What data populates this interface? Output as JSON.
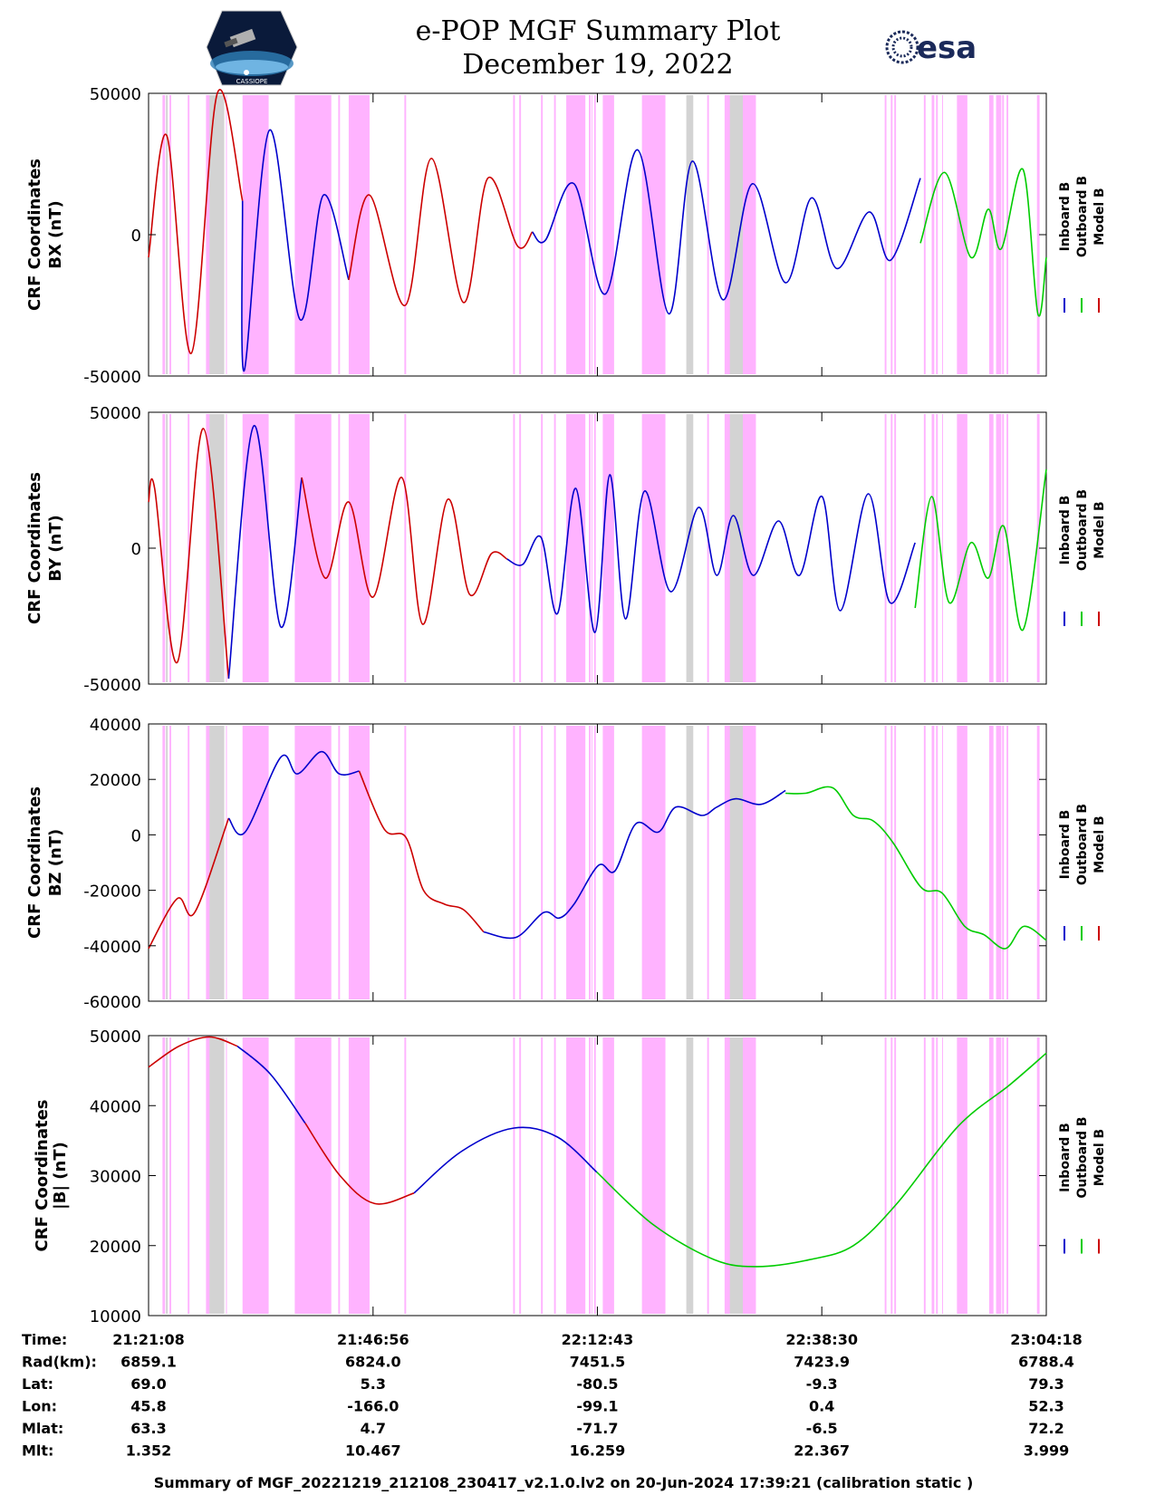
{
  "header": {
    "title": "e-POP MGF Summary Plot",
    "date": "December 19, 2022",
    "mission_logo_caption": "CASSIOPE",
    "agency_logo_text": "esa"
  },
  "footer": {
    "summary": "Summary of MGF_20221219_212108_230417_v2.1.0.lv2 on 20-Jun-2024 17:39:21 (calibration static )"
  },
  "colors": {
    "inboard": "#0000cc",
    "outboard": "#00cc00",
    "model": "#cc0000",
    "pink_shade": "#ffb3ff",
    "gray_shade": "#d3d3d3"
  },
  "chart_data": {
    "type": "line",
    "x_range_minutes": [
      0,
      103.17
    ],
    "x_ticks_minutes": [
      0,
      25.8,
      51.58,
      77.37,
      103.17
    ],
    "legend_entries": [
      "Inboard B",
      "Outboard B",
      "Model B"
    ],
    "orbit_table": {
      "rows": [
        {
          "label": "Time:",
          "values": [
            "21:21:08",
            "21:46:56",
            "22:12:43",
            "22:38:30",
            "23:04:18"
          ]
        },
        {
          "label": "Rad(km):",
          "values": [
            "6859.1",
            "6824.0",
            "7451.5",
            "7423.9",
            "6788.4"
          ]
        },
        {
          "label": "Lat:",
          "values": [
            "69.0",
            "5.3",
            "-80.5",
            "-9.3",
            "79.3"
          ]
        },
        {
          "label": "Lon:",
          "values": [
            "45.8",
            "-166.0",
            "-99.1",
            "0.4",
            "52.3"
          ]
        },
        {
          "label": "Mlat:",
          "values": [
            "63.3",
            "4.7",
            "-71.7",
            "-6.5",
            "72.2"
          ]
        },
        {
          "label": "Mlt:",
          "values": [
            "1.352",
            "10.467",
            "16.259",
            "22.367",
            "3.999"
          ]
        }
      ]
    },
    "shading": {
      "pink": [
        [
          1.6,
          1.9
        ],
        [
          2.4,
          2.6
        ],
        [
          4.5,
          4.7
        ],
        [
          6.6,
          8.5
        ],
        [
          8.9,
          9.0
        ],
        [
          10.8,
          13.8
        ],
        [
          16.8,
          21.0
        ],
        [
          21.8,
          22.0
        ],
        [
          23.0,
          25.4
        ],
        [
          29.4,
          29.6
        ],
        [
          41.9,
          42.1
        ],
        [
          42.6,
          42.8
        ],
        [
          45.1,
          45.3
        ],
        [
          46.6,
          46.8
        ],
        [
          48.0,
          50.2
        ],
        [
          50.6,
          50.8
        ],
        [
          50.9,
          51.0
        ],
        [
          51.2,
          51.4
        ],
        [
          52.2,
          53.5
        ],
        [
          56.7,
          59.4
        ],
        [
          64.2,
          64.4
        ],
        [
          66.2,
          69.8
        ],
        [
          84.6,
          84.8
        ],
        [
          85.3,
          85.5
        ],
        [
          85.7,
          85.9
        ],
        [
          89.1,
          89.3
        ],
        [
          90.0,
          90.3
        ],
        [
          90.5,
          90.7
        ],
        [
          91.2,
          91.3
        ],
        [
          92.9,
          94.1
        ],
        [
          96.6,
          97.1
        ],
        [
          97.4,
          98.0
        ],
        [
          98.1,
          98.3
        ],
        [
          98.6,
          98.8
        ],
        [
          102.1,
          102.4
        ]
      ],
      "gray": [
        [
          2.0,
          2.2
        ],
        [
          7.0,
          8.7
        ],
        [
          61.8,
          62.6
        ],
        [
          66.8,
          68.3
        ]
      ]
    },
    "panels": [
      {
        "ylabel": [
          "CRF Coordinates",
          "BX (nT)"
        ],
        "ylim": [
          -50000,
          50000
        ],
        "yticks": [
          -50000,
          0,
          50000
        ],
        "segments": [
          {
            "color": "model",
            "x": [
              0,
              2.1,
              4.9,
              7.9,
              10.8
            ],
            "y": [
              -8000,
              35000,
              -42000,
              50000,
              12000
            ]
          },
          {
            "color": "inboard",
            "x": [
              10.8,
              11.0,
              13.9,
              17.4,
              20.1,
              23.0
            ],
            "y": [
              12000,
              -48000,
              37000,
              -30000,
              14000,
              -16000
            ]
          },
          {
            "color": "model",
            "x": [
              23.0,
              25.4,
              29.5,
              32.5,
              36.2,
              39.0,
              42.4,
              44.1
            ],
            "y": [
              -16000,
              14000,
              -25000,
              27000,
              -24000,
              20000,
              -4000,
              1000
            ]
          },
          {
            "color": "inboard",
            "x": [
              44.1,
              45.6,
              48.9,
              52.5,
              56.2,
              59.8,
              62.5,
              66.0,
              69.4,
              73.2,
              76.2,
              79.1,
              82.8,
              85.3,
              88.7
            ],
            "y": [
              1000,
              -2000,
              18000,
              -21000,
              30000,
              -28000,
              26000,
              -23000,
              18000,
              -17000,
              13000,
              -12000,
              8000,
              -9000,
              20000
            ]
          },
          {
            "color": "outboard",
            "x": [
              88.7,
              91.5,
              94.5,
              96.5,
              98.0,
              100.5,
              102.2,
              103.17
            ],
            "y": [
              -3000,
              22000,
              -8000,
              9000,
              -5000,
              23000,
              -28000,
              -8000
            ]
          }
        ]
      },
      {
        "ylabel": [
          "CRF Coordinates",
          "BY (nT)"
        ],
        "ylim": [
          -50000,
          50000
        ],
        "yticks": [
          -50000,
          0,
          50000
        ],
        "segments": [
          {
            "color": "model",
            "x": [
              0,
              0.7,
              3.3,
              6.3,
              9.2
            ],
            "y": [
              17000,
              22000,
              -42000,
              44000,
              -48000
            ]
          },
          {
            "color": "inboard",
            "x": [
              9.2,
              12.1,
              15.2,
              17.6
            ],
            "y": [
              -48000,
              45000,
              -29000,
              26000
            ]
          },
          {
            "color": "model",
            "x": [
              17.6,
              20.3,
              23.0,
              25.8,
              29.1,
              31.5,
              34.4,
              36.9,
              39.4,
              41.2
            ],
            "y": [
              26000,
              -11000,
              17000,
              -18000,
              26000,
              -28000,
              18000,
              -17000,
              -2000,
              -4000
            ]
          },
          {
            "color": "inboard",
            "x": [
              41.2,
              43.0,
              45.1,
              47.0,
              49.1,
              51.3,
              53.0,
              54.8,
              57.0,
              60.0,
              63.2,
              65.3,
              67.2,
              69.5,
              72.4,
              74.8,
              77.4,
              79.5,
              82.7,
              85.2,
              88.1
            ],
            "y": [
              -4000,
              -6000,
              4000,
              -24000,
              22000,
              -31000,
              27000,
              -26000,
              21000,
              -16000,
              15000,
              -10000,
              12000,
              -10000,
              10000,
              -10000,
              19000,
              -23000,
              20000,
              -20000,
              2000
            ]
          },
          {
            "color": "outboard",
            "x": [
              88.1,
              90.0,
              92.0,
              94.5,
              96.5,
              98.3,
              100.5,
              103.17
            ],
            "y": [
              -22000,
              19000,
              -20000,
              2000,
              -11000,
              8000,
              -30000,
              29000
            ]
          }
        ]
      },
      {
        "ylabel": [
          "CRF Coordinates",
          "BZ (nT)"
        ],
        "ylim": [
          -60000,
          40000
        ],
        "yticks": [
          -60000,
          -40000,
          -20000,
          0,
          20000,
          40000
        ],
        "segments": [
          {
            "color": "model",
            "x": [
              0,
              3.3,
              5.3,
              9.2
            ],
            "y": [
              -41000,
              -23000,
              -28000,
              6000
            ]
          },
          {
            "color": "inboard",
            "x": [
              9.2,
              11.1,
              15.2,
              17.1,
              19.9,
              21.9,
              24.2
            ],
            "y": [
              6000,
              1000,
              28000,
              22000,
              30000,
              22000,
              23000
            ]
          },
          {
            "color": "model",
            "x": [
              24.2,
              27.1,
              29.6,
              31.6,
              34.0,
              36.2,
              38.5
            ],
            "y": [
              23000,
              2000,
              -1000,
              -20000,
              -25000,
              -27000,
              -35000
            ]
          },
          {
            "color": "inboard",
            "x": [
              38.5,
              42.2,
              45.4,
              47.2,
              48.9,
              51.7,
              53.6,
              56.0,
              58.6,
              60.6,
              63.6,
              65.3,
              67.5,
              70.4,
              73.2
            ],
            "y": [
              -35000,
              -37000,
              -28000,
              -30000,
              -25000,
              -11000,
              -13000,
              4000,
              1000,
              10000,
              7000,
              10000,
              13000,
              11000,
              16000
            ]
          },
          {
            "color": "outboard",
            "x": [
              73.2,
              75.5,
              78.6,
              81.0,
              83.3,
              85.6,
              88.8,
              91.2,
              93.8,
              96.0,
              98.5,
              100.6,
              103.17
            ],
            "y": [
              15000,
              15000,
              17000,
              7000,
              5000,
              -3000,
              -19000,
              -21000,
              -33000,
              -36000,
              -41000,
              -33000,
              -38000
            ]
          }
        ]
      },
      {
        "ylabel": [
          "CRF Coordinates",
          "|B| (nT)"
        ],
        "ylim": [
          10000,
          50000
        ],
        "yticks": [
          10000,
          20000,
          30000,
          40000,
          50000
        ],
        "segments": [
          {
            "color": "model",
            "x": [
              0,
              3.5,
              7.0,
              10.2
            ],
            "y": [
              45500,
              48500,
              49800,
              48500
            ]
          },
          {
            "color": "inboard",
            "x": [
              10.2,
              14.0,
              18.0
            ],
            "y": [
              48500,
              44500,
              37500
            ]
          },
          {
            "color": "model",
            "x": [
              18.0,
              22.0,
              26.0,
              30.5
            ],
            "y": [
              37500,
              30000,
              26000,
              27500
            ]
          },
          {
            "color": "inboard",
            "x": [
              30.5,
              36.0,
              42.0,
              47.0,
              51.5
            ],
            "y": [
              27500,
              33500,
              36800,
              35500,
              30500
            ]
          },
          {
            "color": "outboard",
            "x": [
              51.5,
              58.0,
              65.0,
              70.0,
              76.0,
              81.0,
              86.0,
              93.0,
              99.0,
              103.17
            ],
            "y": [
              30500,
              23000,
              18000,
              17000,
              18000,
              20000,
              26000,
              37000,
              43000,
              47500
            ]
          }
        ]
      }
    ]
  }
}
